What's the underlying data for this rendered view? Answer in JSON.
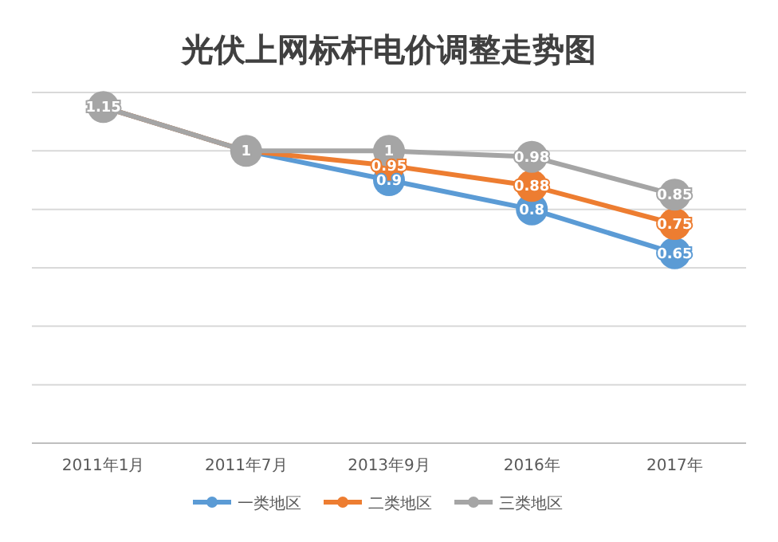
{
  "chart_data": {
    "type": "line",
    "title": "光伏上网标杆电价调整走势图",
    "categories": [
      "2011年1月",
      "2011年7月",
      "2013年9月",
      "2016年",
      "2017年"
    ],
    "series": [
      {
        "name": "一类地区",
        "color": "#5b9bd5",
        "values": [
          1.15,
          1,
          0.9,
          0.8,
          0.65
        ],
        "value_labels": [
          null,
          null,
          "0.9",
          "0.8",
          "0.65"
        ]
      },
      {
        "name": "二类地区",
        "color": "#ed7d31",
        "values": [
          1.15,
          1,
          0.95,
          0.88,
          0.75
        ],
        "value_labels": [
          null,
          null,
          "0.95",
          "0.88",
          "0.75"
        ]
      },
      {
        "name": "三类地区",
        "color": "#a5a5a5",
        "values": [
          1.15,
          1,
          1,
          0.98,
          0.85
        ],
        "value_labels": [
          "1.15",
          "1",
          "1",
          "0.98",
          "0.85"
        ]
      }
    ],
    "ylim": [
      0,
      1.2
    ],
    "yticks": [
      {
        "value": 0,
        "label": null
      },
      {
        "value": 0.2,
        "label": null
      },
      {
        "value": 0.4,
        "label": null
      },
      {
        "value": 0.6,
        "label": null
      },
      {
        "value": 0.8,
        "label": null
      },
      {
        "value": 1,
        "label": null
      },
      {
        "value": 1.2,
        "label": null
      }
    ],
    "grid": "y",
    "legend": "bottom",
    "marker": "circle",
    "line_style": "solid"
  }
}
